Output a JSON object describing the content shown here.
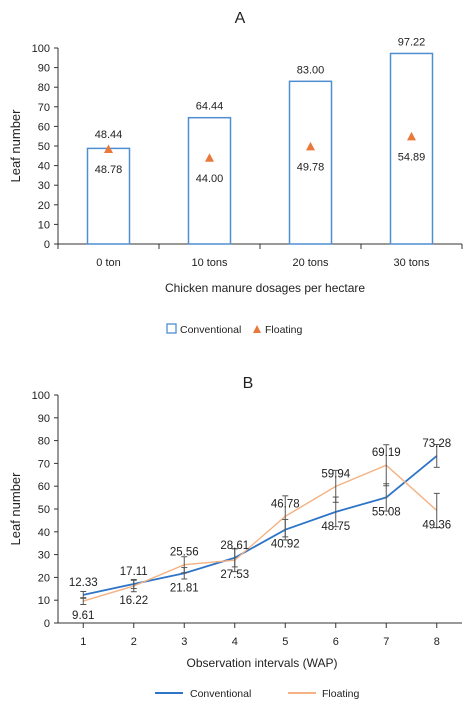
{
  "colors": {
    "conventional_bar": "#4f8fd1",
    "floating_marker": "#e8793a",
    "conventional_line": "#2e75c7",
    "floating_line": "#f4b183",
    "axis": "#333333",
    "error_bar": "#555555"
  },
  "chart_data": [
    {
      "type": "bar",
      "title": "A",
      "xlabel": "Chicken manure dosages per hectare",
      "ylabel": "Leaf number",
      "ylim": [
        0,
        100
      ],
      "yticks": [
        0,
        10,
        20,
        30,
        40,
        50,
        60,
        70,
        80,
        90,
        100
      ],
      "grid": false,
      "legend_position": "bottom",
      "categories": [
        "0  ton",
        "10 tons",
        "20 tons",
        "30 tons"
      ],
      "series": [
        {
          "name": "Conventional",
          "style": "hollow-bar",
          "values": [
            48.78,
            64.44,
            83.0,
            97.22
          ],
          "labels": [
            "48.78",
            "64.44",
            "83.00",
            "97.22"
          ]
        },
        {
          "name": "Floating",
          "style": "triangle-marker",
          "values": [
            48.44,
            44.0,
            49.78,
            54.89
          ],
          "labels": [
            "48.44",
            "44.00",
            "49.78",
            "54.89"
          ]
        }
      ]
    },
    {
      "type": "line",
      "title": "B",
      "xlabel": "Observation intervals (WAP)",
      "ylabel": "Leaf number",
      "ylim": [
        0,
        100
      ],
      "xlim": [
        0.5,
        8.5
      ],
      "yticks": [
        0,
        10,
        20,
        30,
        40,
        50,
        60,
        70,
        80,
        90,
        100
      ],
      "x": [
        1,
        2,
        3,
        4,
        5,
        6,
        7,
        8
      ],
      "grid": false,
      "legend_position": "bottom",
      "series": [
        {
          "name": "Conventional",
          "values": [
            12.33,
            17.11,
            21.81,
            28.61,
            40.92,
            48.75,
            55.08,
            73.28
          ],
          "labels": [
            "12.33",
            "17.11",
            "21.81",
            "28.61",
            "40.92",
            "48.75",
            "55.08",
            "73.28"
          ],
          "errors": [
            1.5,
            2.0,
            2.5,
            4.0,
            4.5,
            6.5,
            6.0,
            5.0
          ]
        },
        {
          "name": "Floating",
          "values": [
            9.61,
            16.22,
            25.56,
            27.53,
            46.78,
            59.94,
            69.19,
            49.36
          ],
          "labels": [
            "9.61",
            "16.22",
            "25.56",
            "27.53",
            "46.78",
            "59.94",
            "69.19",
            "49.36"
          ],
          "errors": [
            1.5,
            2.5,
            3.5,
            5.0,
            9.0,
            7.0,
            9.0,
            7.5
          ]
        }
      ]
    }
  ]
}
